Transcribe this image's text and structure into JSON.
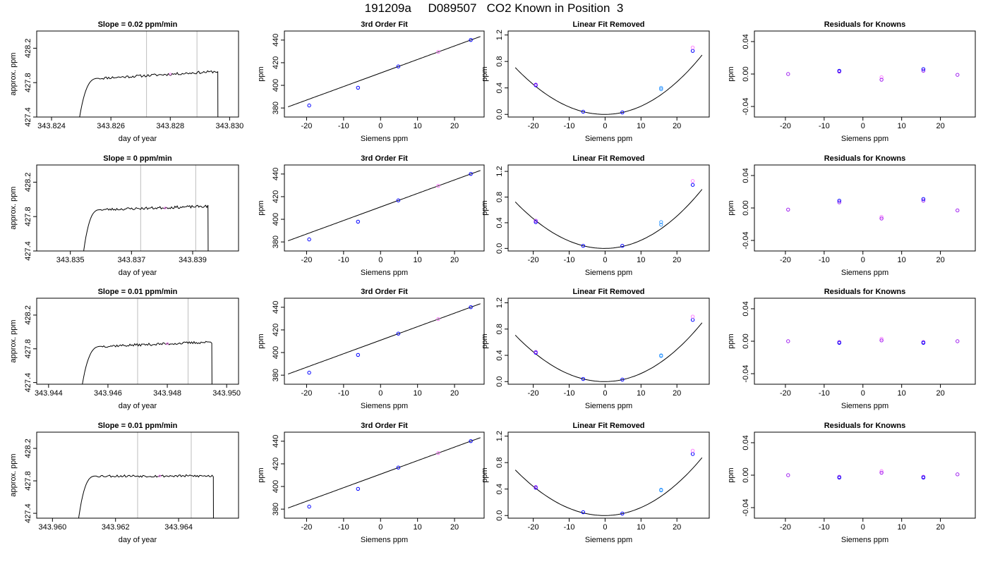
{
  "page": {
    "title": "191209a     D089507   CO2 Known in Position  3"
  },
  "colors": {
    "line": "#000000",
    "vline": "#bebebe",
    "blue": "#0000ff",
    "purple": "#a020f0",
    "lightblue": "#3a9cff",
    "magenta": "#ff80ff"
  },
  "chart_data": [
    {
      "type": "line",
      "row": 0,
      "title": "Slope =  0.02  ppm/min",
      "xlabel": "day of year",
      "ylabel": "approx. ppm",
      "xlim": [
        343.8235,
        343.8303
      ],
      "ylim": [
        427.4,
        428.4
      ],
      "xticks": [
        "343.824",
        "343.826",
        "343.828",
        "343.830"
      ],
      "yticks": [
        "427.4",
        "427.8",
        "428.2"
      ],
      "vlines": [
        343.8272,
        343.8289
      ],
      "trace": {
        "start": 343.8249,
        "rise_end": 343.8256,
        "end": 343.8296,
        "plateau_start": 427.85,
        "plateau_end": 427.93,
        "low": 427.3,
        "seed": 11
      },
      "markers": [
        {
          "x": 343.828,
          "y": 427.9,
          "color": "magenta"
        }
      ]
    },
    {
      "type": "scatter",
      "row": 0,
      "title": "3rd Order Fit",
      "xlabel": "Siemens ppm",
      "ylabel": "ppm",
      "xlim": [
        -26,
        28
      ],
      "ylim": [
        372,
        448
      ],
      "xticks": [
        "-20",
        "-10",
        "0",
        "10",
        "20"
      ],
      "yticks": [
        "380",
        "400",
        "420",
        "440"
      ],
      "curve": {
        "kind": "linear",
        "intercept": 410.9,
        "slope": 1.195,
        "from": -25,
        "to": 27
      },
      "points": [
        {
          "x": -19.3,
          "y": 382.2,
          "color": "blue"
        },
        {
          "x": -6.1,
          "y": 397.9,
          "color": "blue"
        },
        {
          "x": 4.8,
          "y": 416.7,
          "color": "blue"
        },
        {
          "x": 15.6,
          "y": 429.6,
          "color": "magenta"
        },
        {
          "x": 24.4,
          "y": 440.1,
          "color": "blue"
        }
      ]
    },
    {
      "type": "scatter",
      "row": 0,
      "title": "Linear Fit Removed",
      "xlabel": "Siemens ppm",
      "ylabel": "ppm",
      "xlim": [
        -27,
        29
      ],
      "ylim": [
        -0.04,
        1.26
      ],
      "xticks": [
        "-20",
        "-10",
        "0",
        "10",
        "20"
      ],
      "yticks": [
        "0.0",
        "0.4",
        "0.8",
        "1.2"
      ],
      "curve": {
        "kind": "quadratic",
        "a": 0.00118,
        "b": 0.00046,
        "c": 0.0,
        "d": 1.2e-06,
        "from": -25,
        "to": 27
      },
      "points": [
        {
          "x": -19.3,
          "y": 0.44,
          "color": "blue"
        },
        {
          "x": -19.3,
          "y": 0.45,
          "color": "purple"
        },
        {
          "x": -6.1,
          "y": 0.04,
          "color": "blue"
        },
        {
          "x": 4.8,
          "y": 0.03,
          "color": "blue"
        },
        {
          "x": 15.6,
          "y": 0.38,
          "color": "lightblue"
        },
        {
          "x": 15.6,
          "y": 0.4,
          "color": "lightblue"
        },
        {
          "x": 24.4,
          "y": 0.96,
          "color": "blue"
        },
        {
          "x": 24.4,
          "y": 1.01,
          "color": "magenta"
        }
      ]
    },
    {
      "type": "scatter",
      "row": 0,
      "title": "Residuals for Knowns",
      "xlabel": "Siemens ppm",
      "ylabel": "ppm",
      "xlim": [
        -28,
        29
      ],
      "ylim": [
        -0.053,
        0.053
      ],
      "xticks": [
        "-20",
        "-10",
        "0",
        "10",
        "20"
      ],
      "yticks": [
        "-0.04",
        "0.00",
        "0.04"
      ],
      "points": [
        {
          "x": -19.3,
          "y": 0.0,
          "color": "purple"
        },
        {
          "x": -6.1,
          "y": 0.003,
          "color": "purple"
        },
        {
          "x": -6.1,
          "y": 0.004,
          "color": "blue"
        },
        {
          "x": 4.8,
          "y": -0.004,
          "color": "magenta"
        },
        {
          "x": 4.8,
          "y": -0.007,
          "color": "purple"
        },
        {
          "x": 15.6,
          "y": 0.004,
          "color": "purple"
        },
        {
          "x": 15.6,
          "y": 0.006,
          "color": "blue"
        },
        {
          "x": 24.4,
          "y": -0.001,
          "color": "purple"
        }
      ]
    },
    {
      "type": "line",
      "row": 1,
      "title": "Slope =  0  ppm/min",
      "xlabel": "day of year",
      "ylabel": "approx. ppm",
      "xlim": [
        343.8339,
        343.8405
      ],
      "ylim": [
        427.4,
        428.4
      ],
      "xticks": [
        "343.835",
        "343.837",
        "343.839"
      ],
      "yticks": [
        "427.4",
        "427.8",
        "428.2"
      ],
      "vlines": [
        343.8373,
        343.8391
      ],
      "trace": {
        "start": 343.8354,
        "rise_end": 343.836,
        "end": 343.8395,
        "plateau_start": 427.88,
        "plateau_end": 427.92,
        "low": 427.3,
        "seed": 23
      },
      "markers": [
        {
          "x": 343.8381,
          "y": 427.9,
          "color": "magenta"
        }
      ]
    },
    {
      "type": "scatter",
      "row": 1,
      "title": "3rd Order Fit",
      "xlabel": "Siemens ppm",
      "ylabel": "ppm",
      "xlim": [
        -26,
        28
      ],
      "ylim": [
        372,
        448
      ],
      "xticks": [
        "-20",
        "-10",
        "0",
        "10",
        "20"
      ],
      "yticks": [
        "380",
        "400",
        "420",
        "440"
      ],
      "curve": {
        "kind": "linear",
        "intercept": 410.9,
        "slope": 1.195,
        "from": -25,
        "to": 27
      },
      "points": [
        {
          "x": -19.3,
          "y": 382.2,
          "color": "blue"
        },
        {
          "x": -6.1,
          "y": 397.9,
          "color": "blue"
        },
        {
          "x": 4.8,
          "y": 416.7,
          "color": "blue"
        },
        {
          "x": 15.6,
          "y": 429.6,
          "color": "magenta"
        },
        {
          "x": 24.4,
          "y": 440.1,
          "color": "blue"
        }
      ]
    },
    {
      "type": "scatter",
      "row": 1,
      "title": "Linear Fit Removed",
      "xlabel": "Siemens ppm",
      "ylabel": "ppm",
      "xlim": [
        -27,
        29
      ],
      "ylim": [
        -0.04,
        1.3
      ],
      "xticks": [
        "-20",
        "-10",
        "0",
        "10",
        "20"
      ],
      "yticks": [
        "0.0",
        "0.4",
        "0.8",
        "1.2"
      ],
      "curve": {
        "kind": "quadratic",
        "a": 0.00121,
        "b": 0.00047,
        "c": 0.0,
        "d": 1.3e-06,
        "from": -25,
        "to": 27
      },
      "points": [
        {
          "x": -19.3,
          "y": 0.41,
          "color": "blue"
        },
        {
          "x": -19.3,
          "y": 0.43,
          "color": "purple"
        },
        {
          "x": -6.1,
          "y": 0.04,
          "color": "blue"
        },
        {
          "x": 4.8,
          "y": 0.04,
          "color": "blue"
        },
        {
          "x": 15.6,
          "y": 0.37,
          "color": "lightblue"
        },
        {
          "x": 15.6,
          "y": 0.41,
          "color": "lightblue"
        },
        {
          "x": 24.4,
          "y": 0.99,
          "color": "blue"
        },
        {
          "x": 24.4,
          "y": 1.05,
          "color": "magenta"
        }
      ]
    },
    {
      "type": "scatter",
      "row": 1,
      "title": "Residuals for Knowns",
      "xlabel": "Siemens ppm",
      "ylabel": "ppm",
      "xlim": [
        -28,
        29
      ],
      "ylim": [
        -0.053,
        0.053
      ],
      "xticks": [
        "-20",
        "-10",
        "0",
        "10",
        "20"
      ],
      "yticks": [
        "-0.04",
        "0.00",
        "0.04"
      ],
      "points": [
        {
          "x": -19.3,
          "y": -0.002,
          "color": "purple"
        },
        {
          "x": -6.1,
          "y": 0.007,
          "color": "purple"
        },
        {
          "x": -6.1,
          "y": 0.009,
          "color": "blue"
        },
        {
          "x": 4.8,
          "y": -0.011,
          "color": "magenta"
        },
        {
          "x": 4.8,
          "y": -0.013,
          "color": "purple"
        },
        {
          "x": 15.6,
          "y": 0.009,
          "color": "purple"
        },
        {
          "x": 15.6,
          "y": 0.011,
          "color": "blue"
        },
        {
          "x": 24.4,
          "y": -0.003,
          "color": "purple"
        }
      ]
    },
    {
      "type": "line",
      "row": 2,
      "title": "Slope =  0.01  ppm/min",
      "xlabel": "day of year",
      "ylabel": "approx. ppm",
      "xlim": [
        343.9436,
        343.9504
      ],
      "ylim": [
        427.38,
        428.4
      ],
      "xticks": [
        "343.944",
        "343.946",
        "343.948",
        "343.950"
      ],
      "yticks": [
        "427.4",
        "427.8",
        "428.2"
      ],
      "vlines": [
        343.947,
        343.9487
      ],
      "trace": {
        "start": 343.9451,
        "rise_end": 343.9458,
        "end": 343.9495,
        "plateau_start": 427.83,
        "plateau_end": 427.88,
        "low": 427.3,
        "seed": 37
      },
      "markers": [
        {
          "x": 343.948,
          "y": 427.86,
          "color": "magenta"
        }
      ]
    },
    {
      "type": "scatter",
      "row": 2,
      "title": "3rd Order Fit",
      "xlabel": "Siemens ppm",
      "ylabel": "ppm",
      "xlim": [
        -26,
        28
      ],
      "ylim": [
        372,
        448
      ],
      "xticks": [
        "-20",
        "-10",
        "0",
        "10",
        "20"
      ],
      "yticks": [
        "380",
        "400",
        "420",
        "440"
      ],
      "curve": {
        "kind": "linear",
        "intercept": 410.9,
        "slope": 1.195,
        "from": -25,
        "to": 27
      },
      "points": [
        {
          "x": -19.3,
          "y": 382.2,
          "color": "blue"
        },
        {
          "x": -6.1,
          "y": 397.9,
          "color": "blue"
        },
        {
          "x": 4.8,
          "y": 416.7,
          "color": "blue"
        },
        {
          "x": 15.6,
          "y": 429.6,
          "color": "magenta"
        },
        {
          "x": 24.4,
          "y": 440.1,
          "color": "blue"
        }
      ]
    },
    {
      "type": "scatter",
      "row": 2,
      "title": "Linear Fit Removed",
      "xlabel": "Siemens ppm",
      "ylabel": "ppm",
      "xlim": [
        -27,
        29
      ],
      "ylim": [
        -0.04,
        1.27
      ],
      "xticks": [
        "-20",
        "-10",
        "0",
        "10",
        "20"
      ],
      "yticks": [
        "0.0",
        "0.4",
        "0.8",
        "1.2"
      ],
      "curve": {
        "kind": "quadratic",
        "a": 0.00118,
        "b": 0.00046,
        "c": 0.0,
        "d": 1.2e-06,
        "from": -25,
        "to": 27
      },
      "points": [
        {
          "x": -19.3,
          "y": 0.44,
          "color": "blue"
        },
        {
          "x": -19.3,
          "y": 0.45,
          "color": "purple"
        },
        {
          "x": -6.1,
          "y": 0.04,
          "color": "blue"
        },
        {
          "x": 4.8,
          "y": 0.03,
          "color": "blue"
        },
        {
          "x": 15.6,
          "y": 0.39,
          "color": "lightblue"
        },
        {
          "x": 15.6,
          "y": 0.4,
          "color": "lightblue"
        },
        {
          "x": 24.4,
          "y": 0.94,
          "color": "blue"
        },
        {
          "x": 24.4,
          "y": 0.99,
          "color": "magenta"
        }
      ]
    },
    {
      "type": "scatter",
      "row": 2,
      "title": "Residuals for Knowns",
      "xlabel": "Siemens ppm",
      "ylabel": "ppm",
      "xlim": [
        -28,
        29
      ],
      "ylim": [
        -0.053,
        0.053
      ],
      "xticks": [
        "-20",
        "-10",
        "0",
        "10",
        "20"
      ],
      "yticks": [
        "-0.04",
        "0.00",
        "0.04"
      ],
      "points": [
        {
          "x": -19.3,
          "y": 0.0,
          "color": "purple"
        },
        {
          "x": -6.1,
          "y": -0.001,
          "color": "purple"
        },
        {
          "x": -6.1,
          "y": -0.002,
          "color": "blue"
        },
        {
          "x": 4.8,
          "y": 0.003,
          "color": "magenta"
        },
        {
          "x": 4.8,
          "y": 0.001,
          "color": "purple"
        },
        {
          "x": 15.6,
          "y": -0.001,
          "color": "purple"
        },
        {
          "x": 15.6,
          "y": -0.002,
          "color": "blue"
        },
        {
          "x": 24.4,
          "y": 0.0,
          "color": "purple"
        }
      ]
    },
    {
      "type": "line",
      "row": 3,
      "title": "Slope =  0.01  ppm/min",
      "xlabel": "day of year",
      "ylabel": "approx. ppm",
      "xlim": [
        343.9595,
        343.9659
      ],
      "ylim": [
        427.34,
        428.4
      ],
      "xticks": [
        "343.960",
        "343.962",
        "343.964"
      ],
      "yticks": [
        "427.4",
        "427.8",
        "428.2"
      ],
      "vlines": [
        343.9627,
        343.9644
      ],
      "trace": {
        "start": 343.9608,
        "rise_end": 343.9614,
        "end": 343.9651,
        "plateau_start": 427.86,
        "plateau_end": 427.86,
        "low": 427.25,
        "seed": 53
      },
      "markers": [
        {
          "x": 343.9634,
          "y": 427.86,
          "color": "magenta"
        }
      ]
    },
    {
      "type": "scatter",
      "row": 3,
      "title": "3rd Order Fit",
      "xlabel": "Siemens ppm",
      "ylabel": "ppm",
      "xlim": [
        -26,
        28
      ],
      "ylim": [
        372,
        448
      ],
      "xticks": [
        "-20",
        "-10",
        "0",
        "10",
        "20"
      ],
      "yticks": [
        "380",
        "400",
        "420",
        "440"
      ],
      "curve": {
        "kind": "linear",
        "intercept": 410.9,
        "slope": 1.195,
        "from": -25,
        "to": 27
      },
      "points": [
        {
          "x": -19.3,
          "y": 382.2,
          "color": "blue"
        },
        {
          "x": -6.1,
          "y": 397.9,
          "color": "blue"
        },
        {
          "x": 4.8,
          "y": 416.7,
          "color": "blue"
        },
        {
          "x": 15.6,
          "y": 429.6,
          "color": "magenta"
        },
        {
          "x": 24.4,
          "y": 440.1,
          "color": "blue"
        }
      ]
    },
    {
      "type": "scatter",
      "row": 3,
      "title": "Linear Fit Removed",
      "xlabel": "Siemens ppm",
      "ylabel": "ppm",
      "xlim": [
        -27,
        29
      ],
      "ylim": [
        -0.04,
        1.26
      ],
      "xticks": [
        "-20",
        "-10",
        "0",
        "10",
        "20"
      ],
      "yticks": [
        "0.0",
        "0.4",
        "0.8",
        "1.2"
      ],
      "curve": {
        "kind": "quadratic",
        "a": 0.00115,
        "b": 0.00046,
        "c": 0.0,
        "d": 1.2e-06,
        "from": -25,
        "to": 27
      },
      "points": [
        {
          "x": -19.3,
          "y": 0.42,
          "color": "blue"
        },
        {
          "x": -19.3,
          "y": 0.43,
          "color": "purple"
        },
        {
          "x": -6.1,
          "y": 0.05,
          "color": "blue"
        },
        {
          "x": 4.8,
          "y": 0.03,
          "color": "blue"
        },
        {
          "x": 15.6,
          "y": 0.38,
          "color": "lightblue"
        },
        {
          "x": 15.6,
          "y": 0.39,
          "color": "lightblue"
        },
        {
          "x": 24.4,
          "y": 0.93,
          "color": "blue"
        },
        {
          "x": 24.4,
          "y": 0.98,
          "color": "magenta"
        }
      ]
    },
    {
      "type": "scatter",
      "row": 3,
      "title": "Residuals for Knowns",
      "xlabel": "Siemens ppm",
      "ylabel": "ppm",
      "xlim": [
        -28,
        29
      ],
      "ylim": [
        -0.053,
        0.053
      ],
      "xticks": [
        "-20",
        "-10",
        "0",
        "10",
        "20"
      ],
      "yticks": [
        "-0.04",
        "0.00",
        "0.04"
      ],
      "points": [
        {
          "x": -19.3,
          "y": 0.0,
          "color": "purple"
        },
        {
          "x": -6.1,
          "y": -0.002,
          "color": "purple"
        },
        {
          "x": -6.1,
          "y": -0.003,
          "color": "blue"
        },
        {
          "x": 4.8,
          "y": 0.005,
          "color": "magenta"
        },
        {
          "x": 4.8,
          "y": 0.003,
          "color": "purple"
        },
        {
          "x": 15.6,
          "y": -0.002,
          "color": "purple"
        },
        {
          "x": 15.6,
          "y": -0.003,
          "color": "blue"
        },
        {
          "x": 24.4,
          "y": 0.001,
          "color": "purple"
        }
      ]
    }
  ]
}
